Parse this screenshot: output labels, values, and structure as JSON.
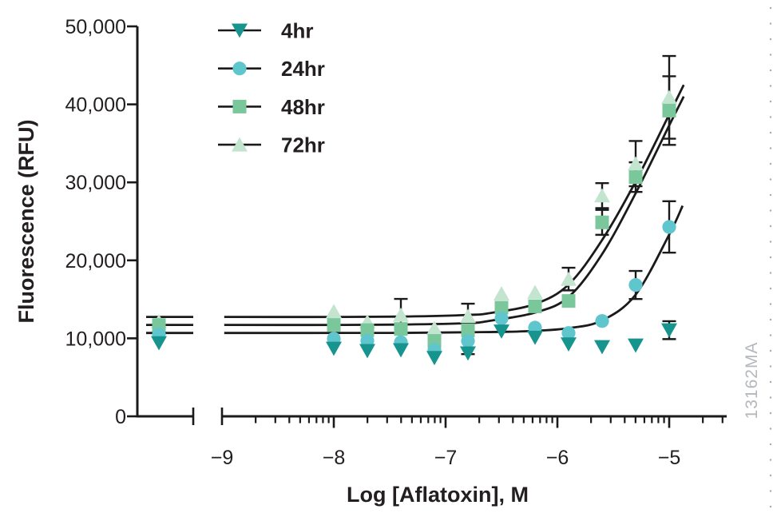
{
  "page": {
    "background": "#ffffff",
    "right_edge_dots_color": "#a9adb2"
  },
  "chart_data": {
    "type": "scatter",
    "title": "",
    "xlabel": "Log [Aflatoxin], M",
    "ylabel": "Fluorescence (RFU)",
    "watermark": "13162MA",
    "grid": false,
    "legend_position": "top-left-inside",
    "curve_color": "#1a1a1a",
    "y_axis": {
      "min": 0,
      "max": 50000,
      "ticks": [
        0,
        10000,
        20000,
        30000,
        40000,
        50000
      ],
      "tick_labels": [
        "0",
        "10,000",
        "20,000",
        "30,000",
        "40,000",
        "50,000"
      ]
    },
    "x_axis": {
      "scale": "log10 molar concentration",
      "broken": true,
      "control_point_prebreak": true,
      "decade_ticks": [
        -9,
        -8,
        -7,
        -6,
        -5
      ],
      "tick_labels": [
        "−9",
        "−8",
        "−7",
        "−6",
        "−5"
      ],
      "minor_tick_multiples": [
        2,
        3,
        4,
        5,
        6,
        7,
        8,
        9
      ],
      "end_log": -4.486
    },
    "x_log": [
      -8,
      -7.7,
      -7.4,
      -7.1,
      -6.8,
      -6.5,
      -6.2,
      -5.9,
      -5.6,
      -5.3,
      -5
    ],
    "series": [
      {
        "name": "4hr",
        "marker": "triangle-down",
        "color": "#17948E",
        "control_value": 9400,
        "values": [
          8700,
          8400,
          8500,
          7500,
          8100,
          10900,
          10100,
          9250,
          8900,
          9100,
          11050
        ],
        "errors": [
          null,
          null,
          null,
          null,
          null,
          null,
          null,
          null,
          null,
          null,
          1150
        ],
        "plateau": null,
        "curve_points": null
      },
      {
        "name": "24hr",
        "marker": "circle",
        "color": "#5FC6CE",
        "control_value": 10500,
        "values": [
          9950,
          9700,
          9500,
          8500,
          9670,
          12550,
          11370,
          10690,
          12220,
          16840,
          24280
        ],
        "errors": [
          null,
          null,
          null,
          null,
          1700,
          null,
          null,
          null,
          null,
          1800,
          3300
        ],
        "plateau": 10690,
        "curve_points": [
          [
            -8.98,
            10690
          ],
          [
            -8.2,
            10690
          ],
          [
            -7.4,
            10700
          ],
          [
            -6.8,
            10780
          ],
          [
            -6.3,
            10900
          ],
          [
            -5.9,
            11300
          ],
          [
            -5.6,
            12300
          ],
          [
            -5.3,
            15600
          ],
          [
            -5.0,
            23300
          ],
          [
            -4.88,
            27000
          ]
        ]
      },
      {
        "name": "48hr",
        "marker": "square",
        "color": "#7AC79B",
        "control_value": 11700,
        "values": [
          11715,
          11050,
          11200,
          9670,
          11030,
          13930,
          14100,
          14790,
          24870,
          30670,
          39200
        ],
        "errors": [
          null,
          null,
          null,
          null,
          null,
          null,
          null,
          null,
          1600,
          1900,
          4400
        ],
        "plateau": 11715,
        "curve_points": [
          [
            -8.98,
            11715
          ],
          [
            -8.2,
            11715
          ],
          [
            -7.4,
            11760
          ],
          [
            -6.8,
            11950
          ],
          [
            -6.6,
            12250
          ],
          [
            -6.2,
            13300
          ],
          [
            -5.9,
            15300
          ],
          [
            -5.6,
            20800
          ],
          [
            -5.3,
            28600
          ],
          [
            -5.0,
            37300
          ],
          [
            -4.87,
            41000
          ]
        ]
      },
      {
        "name": "72hr",
        "marker": "triangle-up",
        "color": "#C3E4CF",
        "control_value": 12150,
        "values": [
          13450,
          12140,
          13000,
          11300,
          12840,
          15730,
          15900,
          17600,
          28300,
          32400,
          40900
        ],
        "errors": [
          null,
          null,
          2050,
          null,
          1600,
          null,
          null,
          1450,
          1600,
          2900,
          5300
        ],
        "plateau": 12740,
        "curve_points": [
          [
            -8.98,
            12740
          ],
          [
            -8.2,
            12740
          ],
          [
            -7.4,
            12790
          ],
          [
            -6.8,
            13000
          ],
          [
            -6.6,
            13250
          ],
          [
            -6.2,
            14400
          ],
          [
            -5.9,
            16900
          ],
          [
            -5.6,
            22600
          ],
          [
            -5.3,
            30100
          ],
          [
            -5.0,
            38700
          ],
          [
            -4.87,
            42500
          ]
        ]
      }
    ]
  }
}
